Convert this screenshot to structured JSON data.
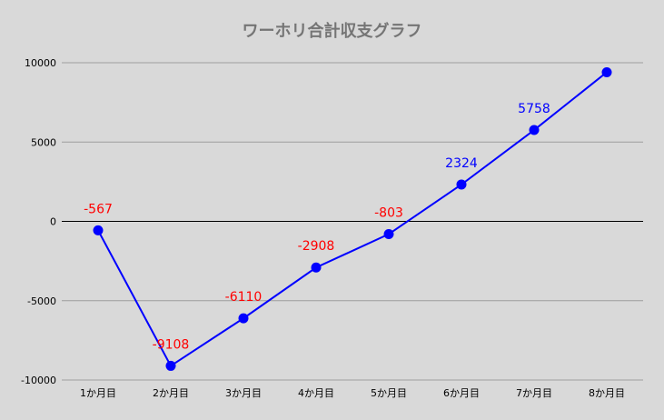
{
  "chart_data": {
    "type": "line",
    "title": "ワーホリ合計収支グラフ",
    "xlabel": "",
    "ylabel": "",
    "categories": [
      "1か月目",
      "2か月目",
      "3か月目",
      "4か月目",
      "5か月目",
      "6か月目",
      "7か月目",
      "8か月目"
    ],
    "series": [
      {
        "values": [
          -567,
          -9108,
          -6110,
          -2908,
          -803,
          2324,
          5758,
          9400
        ],
        "data_labels": [
          "-567",
          "-9108",
          "-6110",
          "-2908",
          "-803",
          "2324",
          "5758",
          ""
        ]
      }
    ],
    "ylim": [
      -10000,
      10000
    ],
    "yticks": [
      -10000,
      -5000,
      0,
      5000,
      10000
    ],
    "grid": true,
    "legend": "none",
    "colors": {
      "line": "#0000ff",
      "marker": "#0000ff",
      "negative_label": "#ff0000",
      "positive_label": "#0000ff",
      "background": "#d9d9d9",
      "gridline": "#9e9e9e",
      "zero_line": "#000000",
      "title": "#757575",
      "tick_label": "#000000"
    }
  }
}
